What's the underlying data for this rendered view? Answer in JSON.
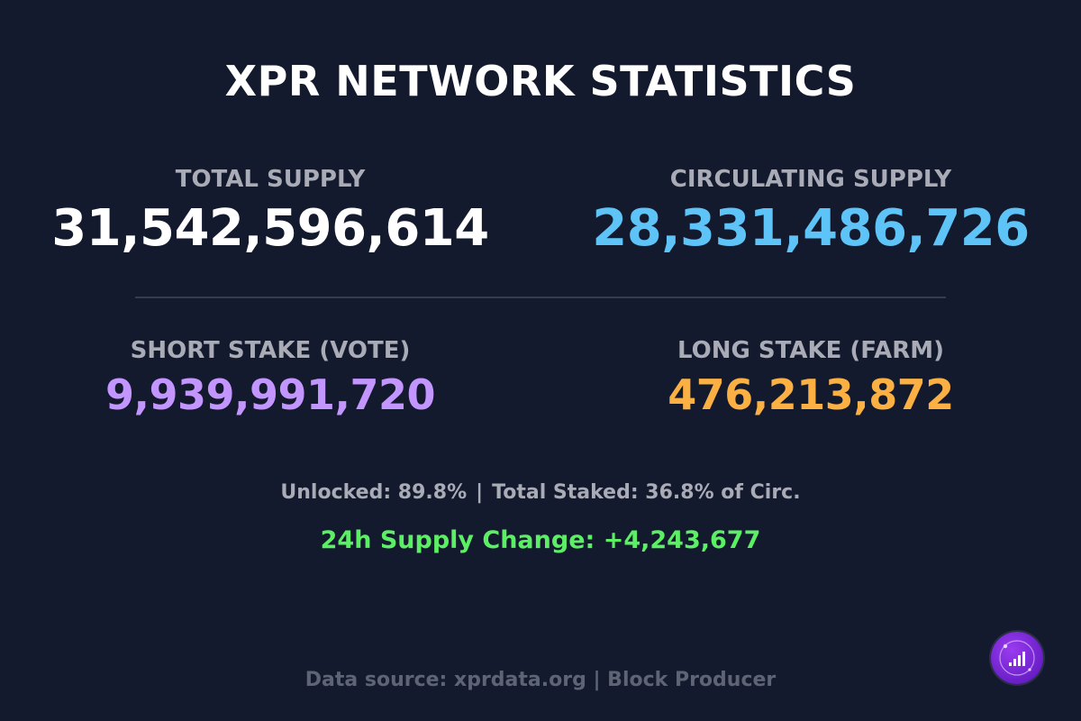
{
  "title": "XPR NETWORK STATISTICS",
  "stats": {
    "total_supply": {
      "label": "TOTAL SUPPLY",
      "value": "31,542,596,614",
      "color": "#ffffff"
    },
    "circulating_supply": {
      "label": "CIRCULATING SUPPLY",
      "value": "28,331,486,726",
      "color": "#5ec3f7"
    },
    "short_stake": {
      "label": "SHORT STAKE (VOTE)",
      "value": "9,939,991,720",
      "color": "#c395ff"
    },
    "long_stake": {
      "label": "LONG STAKE (FARM)",
      "value": "476,213,872",
      "color": "#fbb044"
    }
  },
  "summary": {
    "unlocked": "Unlocked: 89.8%",
    "separator": "|",
    "total_staked": "Total Staked: 36.8% of Circ."
  },
  "supply_change": {
    "text": "24h Supply Change: +4,243,677",
    "color": "#5cef66"
  },
  "footer": "Data source: xprdata.org | Block Producer",
  "logo": {
    "icon": "bar-chart-logo-icon",
    "color": "#8a2be2"
  }
}
